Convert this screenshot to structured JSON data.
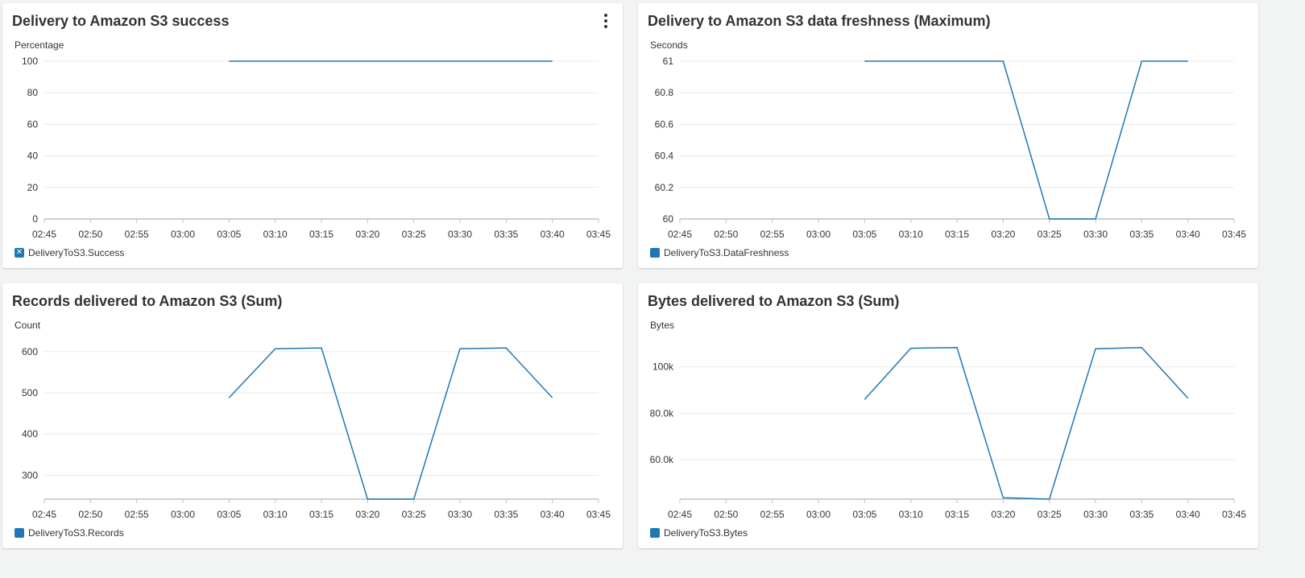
{
  "colors": {
    "series": "#1f77b4",
    "grid": "#e8e8e8",
    "axis": "#c0c0c0"
  },
  "chart_data": [
    {
      "type": "line",
      "title": "Delivery to Amazon S3 success",
      "ylabel": "Percentage",
      "x": [
        "02:45",
        "02:50",
        "02:55",
        "03:00",
        "03:05",
        "03:10",
        "03:15",
        "03:20",
        "03:25",
        "03:30",
        "03:35",
        "03:40",
        "03:45"
      ],
      "ylim": [
        0,
        100
      ],
      "yticks": [
        0,
        20,
        40,
        60,
        80,
        100
      ],
      "ytick_labels": [
        "0",
        "20",
        "40",
        "60",
        "80",
        "100"
      ],
      "series": [
        {
          "name": "DeliveryToS3.Success",
          "x": [
            "03:05",
            "03:10",
            "03:15",
            "03:20",
            "03:25",
            "03:30",
            "03:35",
            "03:40"
          ],
          "values": [
            100,
            100,
            100,
            100,
            100,
            100,
            100,
            100
          ]
        }
      ],
      "legend_icon": "close-icon",
      "grid": true,
      "legend_position": "bottom-left",
      "has_menu": true
    },
    {
      "type": "line",
      "title": "Delivery to Amazon S3 data freshness (Maximum)",
      "ylabel": "Seconds",
      "x": [
        "02:45",
        "02:50",
        "02:55",
        "03:00",
        "03:05",
        "03:10",
        "03:15",
        "03:20",
        "03:25",
        "03:30",
        "03:35",
        "03:40",
        "03:45"
      ],
      "ylim": [
        60,
        61
      ],
      "yticks": [
        60,
        60.2,
        60.4,
        60.6,
        60.8,
        61
      ],
      "ytick_labels": [
        "60",
        "60.2",
        "60.4",
        "60.6",
        "60.8",
        "61"
      ],
      "series": [
        {
          "name": "DeliveryToS3.DataFreshness",
          "x": [
            "03:05",
            "03:10",
            "03:15",
            "03:20",
            "03:25",
            "03:30",
            "03:35",
            "03:40"
          ],
          "values": [
            61,
            61,
            61,
            61,
            60,
            60,
            61,
            61
          ]
        }
      ],
      "legend_icon": "square",
      "grid": true,
      "legend_position": "bottom-left",
      "has_menu": false
    },
    {
      "type": "line",
      "title": "Records delivered to Amazon S3 (Sum)",
      "ylabel": "Count",
      "x": [
        "02:45",
        "02:50",
        "02:55",
        "03:00",
        "03:05",
        "03:10",
        "03:15",
        "03:20",
        "03:25",
        "03:30",
        "03:35",
        "03:40",
        "03:45"
      ],
      "ylim": [
        242,
        625
      ],
      "yticks": [
        300,
        400,
        500,
        600
      ],
      "ytick_labels": [
        "300",
        "400",
        "500",
        "600"
      ],
      "series": [
        {
          "name": "DeliveryToS3.Records",
          "x": [
            "03:05",
            "03:10",
            "03:15",
            "03:20",
            "03:25",
            "03:30",
            "03:35",
            "03:40"
          ],
          "values": [
            488,
            607,
            609,
            242,
            242,
            607,
            609,
            488
          ]
        }
      ],
      "legend_icon": "square",
      "grid": true,
      "legend_position": "bottom-left",
      "has_menu": false
    },
    {
      "type": "line",
      "title": "Bytes delivered to Amazon S3 (Sum)",
      "ylabel": "Bytes",
      "x": [
        "02:45",
        "02:50",
        "02:55",
        "03:00",
        "03:05",
        "03:10",
        "03:15",
        "03:20",
        "03:25",
        "03:30",
        "03:35",
        "03:40",
        "03:45"
      ],
      "ylim": [
        43000,
        111000
      ],
      "yticks": [
        60000,
        80000,
        100000
      ],
      "ytick_labels": [
        "60.0k",
        "80.0k",
        "100k"
      ],
      "series": [
        {
          "name": "DeliveryToS3.Bytes",
          "x": [
            "03:05",
            "03:10",
            "03:15",
            "03:20",
            "03:25",
            "03:30",
            "03:35",
            "03:40"
          ],
          "values": [
            86000,
            108000,
            108300,
            43600,
            43000,
            107800,
            108300,
            86500
          ]
        }
      ],
      "legend_icon": "square",
      "grid": true,
      "legend_position": "bottom-left",
      "has_menu": false
    }
  ]
}
